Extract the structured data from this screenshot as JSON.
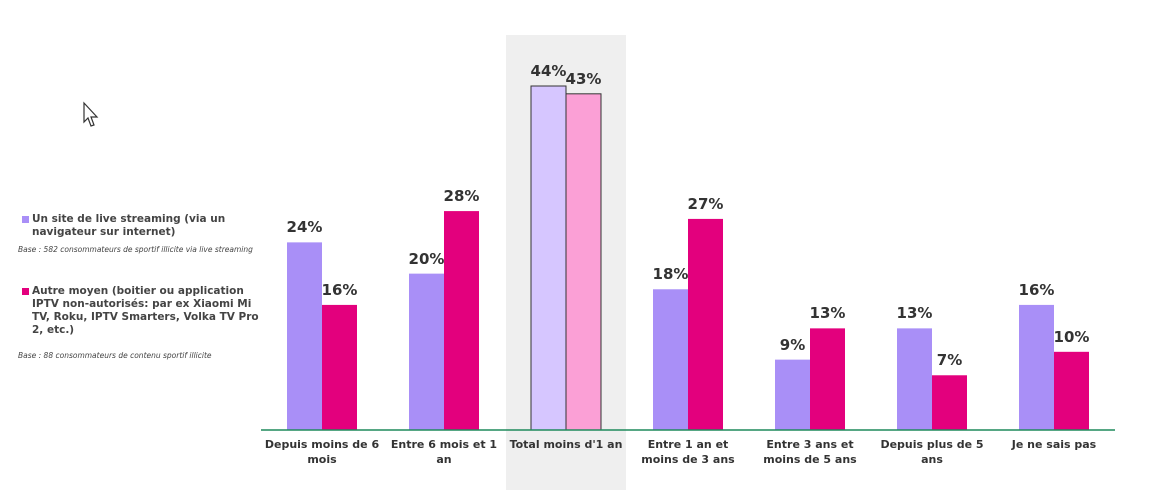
{
  "chart_data": {
    "type": "bar",
    "categories": [
      "Depuis moins de 6 mois",
      "Entre 6 mois et 1 an",
      "Total moins d'1 an",
      "Entre 1 an et moins de 3 ans",
      "Entre 3 ans et moins de 5 ans",
      "Depuis plus de 5 ans",
      "Je ne sais pas"
    ],
    "series": [
      {
        "name": "Un site de live streaming (via un navigateur sur internet)",
        "color": "#a98ff7",
        "highlight_color": "#d6c6ff",
        "values": [
          24,
          20,
          44,
          18,
          9,
          13,
          16
        ],
        "value_labels": [
          "24%",
          "20%",
          "44%",
          "18%",
          "9%",
          "13%",
          "16%"
        ],
        "base": "Base : 582 consommateurs de sportif illicite via live streaming"
      },
      {
        "name": "Autre moyen (boitier ou application IPTV non-autorisés: par ex Xiaomi Mi TV, Roku, IPTV Smarters, Volka TV Pro 2, etc.)",
        "color": "#e3007d",
        "highlight_color": "#fba0d6",
        "values": [
          16,
          28,
          43,
          27,
          13,
          7,
          10
        ],
        "value_labels": [
          "16%",
          "28%",
          "43%",
          "27%",
          "13%",
          "7%",
          "10%"
        ],
        "base": "Base : 88 consommateurs de contenu sportif illicite"
      }
    ],
    "highlight_category": 2
  }
}
